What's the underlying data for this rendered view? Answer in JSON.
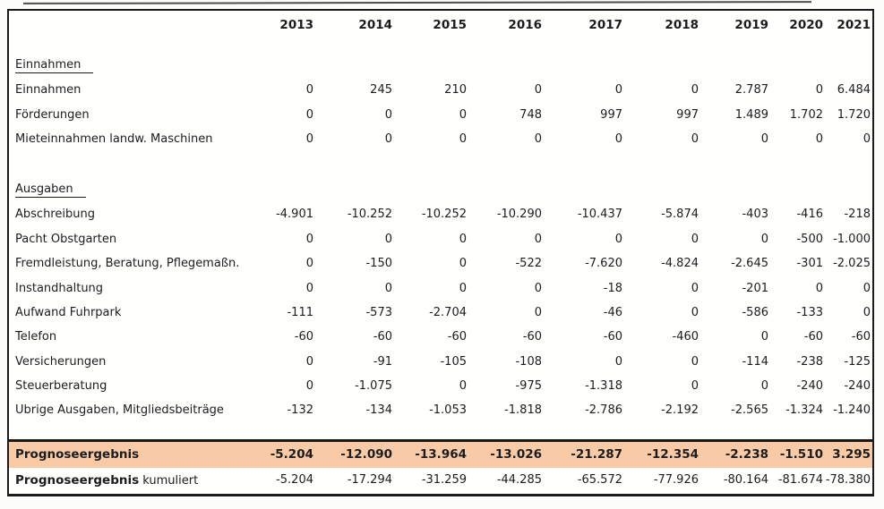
{
  "document": {
    "kind": "scanned-financial-forecast-table",
    "language": "de"
  },
  "colors": {
    "highlight_row_background": "#f8cba6",
    "table_border": "#1b1b1b",
    "text": "#1c1c1c"
  },
  "table": {
    "years": [
      "2013",
      "2014",
      "2015",
      "2016",
      "2017",
      "2018",
      "2019",
      "2020",
      "2021"
    ],
    "sections": [
      {
        "title": "Einnahmen",
        "rows": [
          {
            "label": "Einnahmen",
            "values": [
              "0",
              "245",
              "210",
              "0",
              "0",
              "0",
              "2.787",
              "0",
              "6.484"
            ]
          },
          {
            "label": "Förderungen",
            "values": [
              "0",
              "0",
              "0",
              "748",
              "997",
              "997",
              "1.489",
              "1.702",
              "1.720"
            ]
          },
          {
            "label": "Mieteinnahmen landw. Maschinen",
            "values": [
              "0",
              "0",
              "0",
              "0",
              "0",
              "0",
              "0",
              "0",
              "0"
            ]
          }
        ]
      },
      {
        "title": "Ausgaben",
        "rows": [
          {
            "label": "Abschreibung",
            "values": [
              "-4.901",
              "-10.252",
              "-10.252",
              "-10.290",
              "-10.437",
              "-5.874",
              "-403",
              "-416",
              "-218"
            ]
          },
          {
            "label": "Pacht Obstgarten",
            "values": [
              "0",
              "0",
              "0",
              "0",
              "0",
              "0",
              "0",
              "-500",
              "-1.000"
            ]
          },
          {
            "label": "Fremdleistung, Beratung, Pflegemaßn.",
            "values": [
              "0",
              "-150",
              "0",
              "-522",
              "-7.620",
              "-4.824",
              "-2.645",
              "-301",
              "-2.025"
            ]
          },
          {
            "label": "Instandhaltung",
            "values": [
              "0",
              "0",
              "0",
              "0",
              "-18",
              "0",
              "-201",
              "0",
              "0"
            ]
          },
          {
            "label": "Aufwand Fuhrpark",
            "values": [
              "-111",
              "-573",
              "-2.704",
              "0",
              "-46",
              "0",
              "-586",
              "-133",
              "0"
            ]
          },
          {
            "label": "Telefon",
            "values": [
              "-60",
              "-60",
              "-60",
              "-60",
              "-60",
              "-460",
              "0",
              "-60",
              "-60"
            ]
          },
          {
            "label": "Versicherungen",
            "values": [
              "0",
              "-91",
              "-105",
              "-108",
              "0",
              "0",
              "-114",
              "-238",
              "-125"
            ]
          },
          {
            "label": "Steuerberatung",
            "values": [
              "0",
              "-1.075",
              "0",
              "-975",
              "-1.318",
              "0",
              "0",
              "-240",
              "-240"
            ]
          },
          {
            "label": "Übrige Ausgaben, Mitgliedsbeiträge",
            "values": [
              "-132",
              "-134",
              "-1.053",
              "-1.818",
              "-2.786",
              "-2.192",
              "-2.565",
              "-1.324",
              "-1.240"
            ]
          }
        ]
      }
    ],
    "summary": [
      {
        "label": "Prognoseergebnis",
        "suffix": "",
        "highlight": true,
        "values": [
          "-5.204",
          "-12.090",
          "-13.964",
          "-13.026",
          "-21.287",
          "-12.354",
          "-2.238",
          "-1.510",
          "3.295"
        ]
      },
      {
        "label": "Prognoseergebnis",
        "suffix": "kumuliert",
        "highlight": false,
        "values": [
          "-5.204",
          "-17.294",
          "-31.259",
          "-44.285",
          "-65.572",
          "-77.926",
          "-80.164",
          "-81.674",
          "-78.380"
        ]
      }
    ]
  }
}
